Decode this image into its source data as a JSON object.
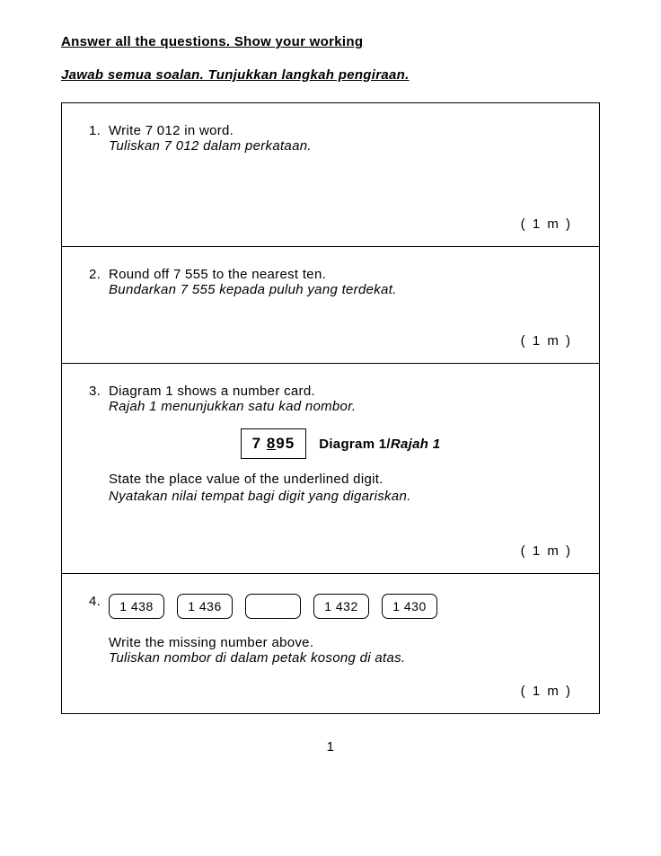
{
  "header": {
    "line1": "Answer all the questions. Show your working",
    "line2": "Jawab semua soalan. Tunjukkan langkah pengiraan."
  },
  "questions": {
    "q1": {
      "num": "1.",
      "en": "Write 7 012 in word.",
      "my": "Tuliskan 7 012 dalam perkataan.",
      "marks": "( 1 m )"
    },
    "q2": {
      "num": "2.",
      "en": "Round off 7 555 to the nearest ten.",
      "my": "Bundarkan 7 555 kepada puluh yang terdekat.",
      "marks": "( 1 m )"
    },
    "q3": {
      "num": "3.",
      "en": "Diagram 1 shows a number card.",
      "my": "Rajah 1 menunjukkan satu kad nombor.",
      "card_pre": "7 ",
      "card_under": "8",
      "card_post": "95",
      "diag_label_plain": "Diagram 1/",
      "diag_label_it": "Rajah 1",
      "follow_en": "State the place value of the underlined digit.",
      "follow_my": "Nyatakan nilai tempat bagi digit  yang digariskan.",
      "marks": "( 1 m )"
    },
    "q4": {
      "num": "4.",
      "boxes": [
        "1 438",
        "1 436",
        "",
        "1 432",
        "1 430"
      ],
      "en": "Write the missing number above.",
      "my": "Tuliskan nombor di dalam petak kosong di atas.",
      "marks": "( 1 m )"
    }
  },
  "page_number": "1"
}
